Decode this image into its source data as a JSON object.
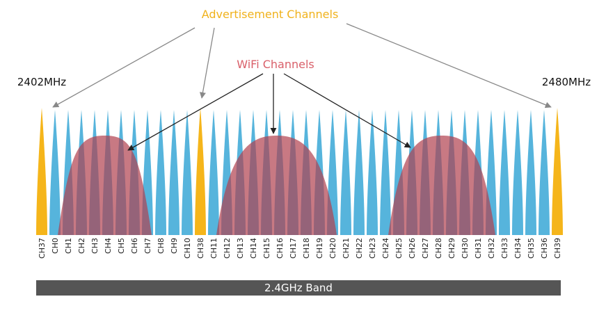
{
  "labels": {
    "advertisement": "Advertisement Channels",
    "wifi": "WiFi Channels",
    "freq_low": "2402MHz",
    "freq_high": "2480MHz",
    "band": "2.4GHz Band"
  },
  "colors": {
    "advertisement": "#f5b51a",
    "data_channel": "#56b4dc",
    "wifi": "#b0404f",
    "band": "#555555",
    "advertisement_text": "#f0b21c",
    "wifi_text": "#d9606a"
  },
  "channels": [
    "CH37",
    "CH0",
    "CH1",
    "CH2",
    "CH3",
    "CH4",
    "CH5",
    "CH6",
    "CH7",
    "CH8",
    "CH9",
    "CH10",
    "CH38",
    "CH11",
    "CH12",
    "CH13",
    "CH14",
    "CH15",
    "CH16",
    "CH17",
    "CH18",
    "CH19",
    "CH20",
    "CH21",
    "CH22",
    "CH23",
    "CH24",
    "CH25",
    "CH26",
    "CH27",
    "CH28",
    "CH29",
    "CH30",
    "CH31",
    "CH32",
    "CH33",
    "CH34",
    "CH35",
    "CH36",
    "CH39"
  ],
  "advertisement_channels": [
    "CH37",
    "CH38",
    "CH39"
  ]
}
